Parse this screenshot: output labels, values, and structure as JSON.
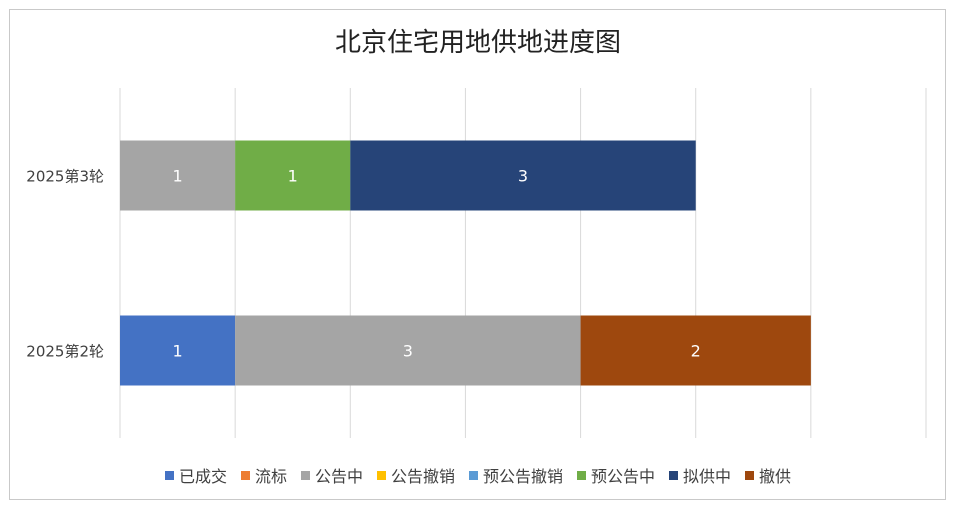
{
  "chart_data": {
    "type": "bar",
    "orientation": "horizontal",
    "stacked": true,
    "title": "北京住宅用地供地进度图",
    "categories": [
      "2025第3轮",
      "2025第2轮"
    ],
    "series": [
      {
        "name": "已成交",
        "color": "#4472c4",
        "values": [
          0,
          1
        ]
      },
      {
        "name": "流标",
        "color": "#ed7d31",
        "values": [
          0,
          0
        ]
      },
      {
        "name": "公告中",
        "color": "#a5a5a5",
        "values": [
          1,
          3
        ]
      },
      {
        "name": "公告撤销",
        "color": "#ffc000",
        "values": [
          0,
          0
        ]
      },
      {
        "name": "预公告撤销",
        "color": "#5b9bd5",
        "values": [
          0,
          0
        ]
      },
      {
        "name": "预公告中",
        "color": "#70ad47",
        "values": [
          1,
          0
        ]
      },
      {
        "name": "拟供中",
        "color": "#264478",
        "values": [
          3,
          0
        ]
      },
      {
        "name": "撤供",
        "color": "#9e480e",
        "values": [
          0,
          2
        ]
      }
    ],
    "xlim": [
      0,
      7
    ],
    "grid": true,
    "legend": "bottom"
  }
}
